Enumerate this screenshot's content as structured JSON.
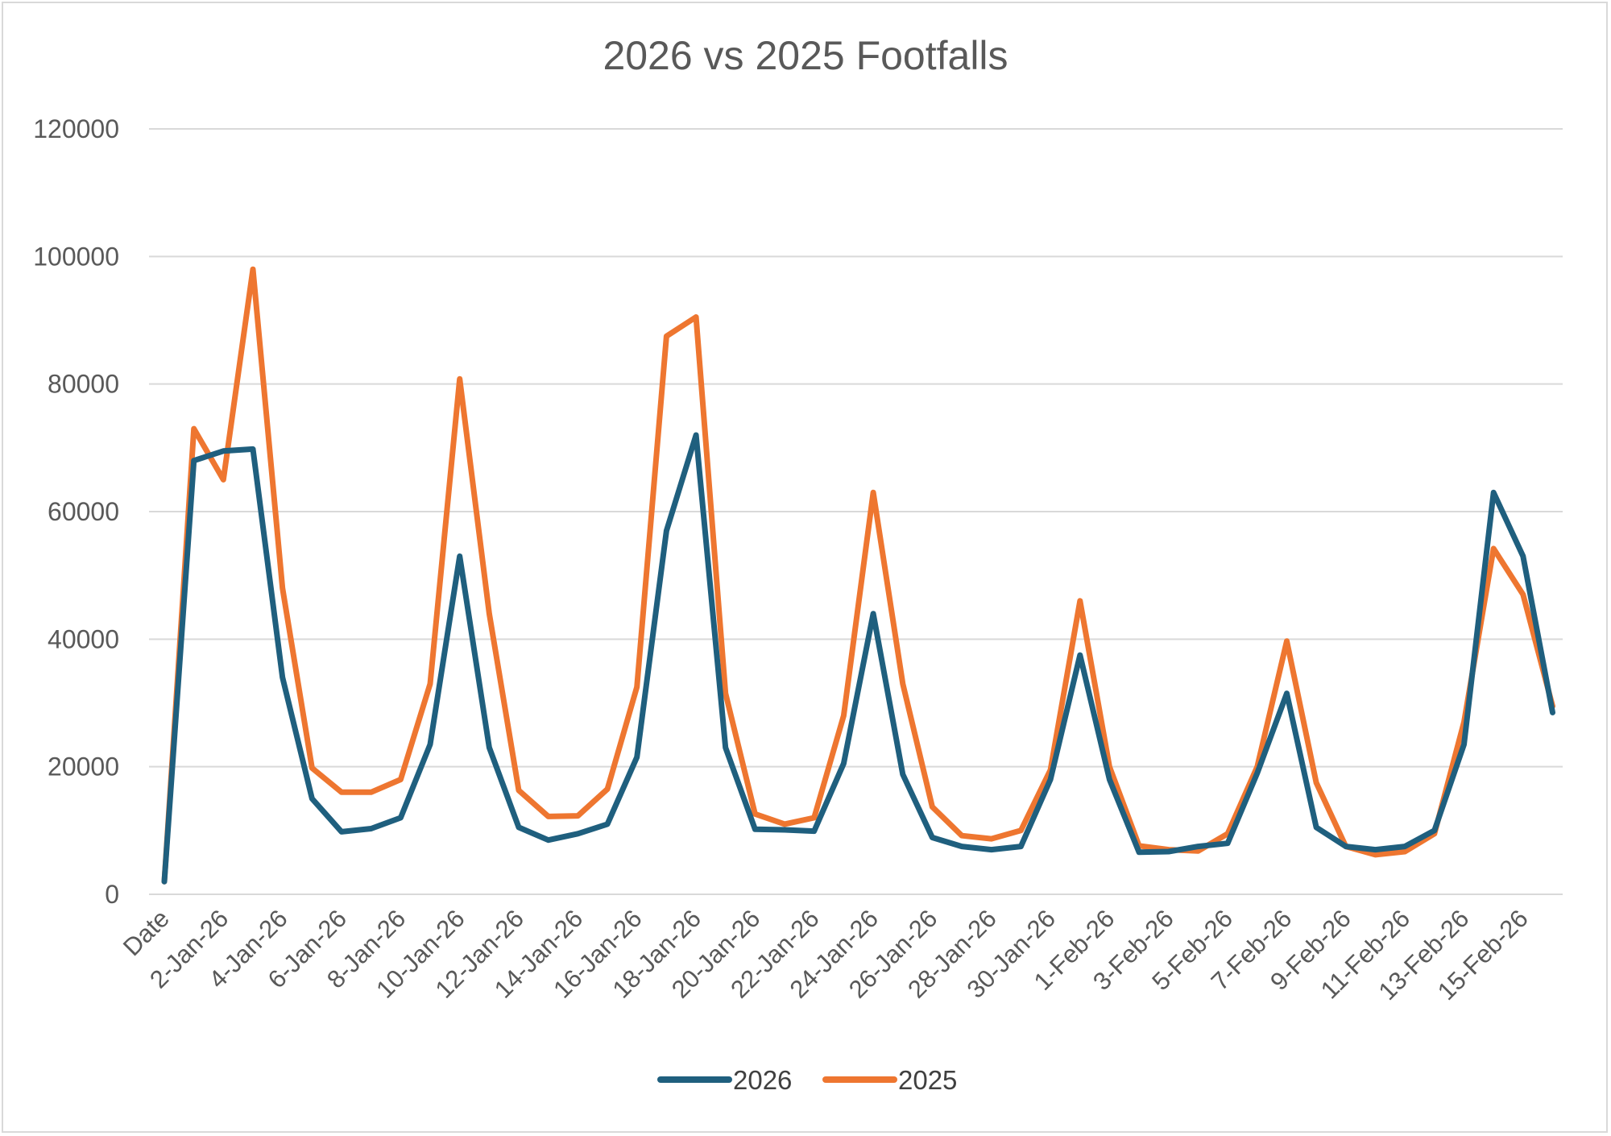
{
  "chart_data": {
    "type": "line",
    "title": "2026 vs 2025 Footfalls",
    "xlabel": "",
    "ylabel": "",
    "ylim": [
      0,
      120000
    ],
    "yticks": [
      0,
      20000,
      40000,
      60000,
      80000,
      100000,
      120000
    ],
    "grid": true,
    "legend_position": "bottom",
    "categories": [
      "Date",
      "1-Jan-26",
      "2-Jan-26",
      "3-Jan-26",
      "4-Jan-26",
      "5-Jan-26",
      "6-Jan-26",
      "7-Jan-26",
      "8-Jan-26",
      "9-Jan-26",
      "10-Jan-26",
      "11-Jan-26",
      "12-Jan-26",
      "13-Jan-26",
      "14-Jan-26",
      "15-Jan-26",
      "16-Jan-26",
      "17-Jan-26",
      "18-Jan-26",
      "19-Jan-26",
      "20-Jan-26",
      "21-Jan-26",
      "22-Jan-26",
      "23-Jan-26",
      "24-Jan-26",
      "25-Jan-26",
      "26-Jan-26",
      "27-Jan-26",
      "28-Jan-26",
      "29-Jan-26",
      "30-Jan-26",
      "31-Jan-26",
      "1-Feb-26",
      "2-Feb-26",
      "3-Feb-26",
      "4-Feb-26",
      "5-Feb-26",
      "6-Feb-26",
      "7-Feb-26",
      "8-Feb-26",
      "9-Feb-26",
      "10-Feb-26",
      "11-Feb-26",
      "12-Feb-26",
      "13-Feb-26",
      "14-Feb-26",
      "15-Feb-26",
      "16-Feb-26"
    ],
    "tick_labels": [
      "Date",
      "2-Jan-26",
      "4-Jan-26",
      "6-Jan-26",
      "8-Jan-26",
      "10-Jan-26",
      "12-Jan-26",
      "14-Jan-26",
      "16-Jan-26",
      "18-Jan-26",
      "20-Jan-26",
      "22-Jan-26",
      "24-Jan-26",
      "26-Jan-26",
      "28-Jan-26",
      "30-Jan-26",
      "1-Feb-26",
      "3-Feb-26",
      "5-Feb-26",
      "7-Feb-26",
      "9-Feb-26",
      "11-Feb-26",
      "13-Feb-26",
      "15-Feb-26"
    ],
    "series": [
      {
        "name": "2026",
        "color": "#1f5f7e",
        "values": [
          2000,
          68000,
          69500,
          69800,
          34000,
          15000,
          9800,
          10300,
          12000,
          23500,
          53000,
          23000,
          10500,
          8500,
          9500,
          11000,
          21500,
          57000,
          72000,
          23000,
          10200,
          10100,
          9900,
          20500,
          44000,
          18800,
          8900,
          7500,
          7000,
          7500,
          18000,
          37500,
          18000,
          6600,
          6700,
          7500,
          8000,
          19000,
          31500,
          10500,
          7500,
          7000,
          7500,
          10000,
          23500,
          63000,
          53000,
          28500
        ]
      },
      {
        "name": "2025",
        "color": "#ee7630",
        "values": [
          2000,
          73000,
          65000,
          98000,
          48000,
          19800,
          16000,
          16000,
          18000,
          33000,
          80800,
          44000,
          16300,
          12200,
          12300,
          16500,
          32500,
          87500,
          90500,
          31500,
          12600,
          11000,
          12000,
          28000,
          63000,
          33000,
          13700,
          9200,
          8700,
          10000,
          19500,
          46000,
          20000,
          7600,
          7000,
          6800,
          9500,
          20000,
          39700,
          17500,
          7500,
          6200,
          6700,
          9500,
          27000,
          54200,
          47000,
          29500
        ]
      }
    ]
  }
}
